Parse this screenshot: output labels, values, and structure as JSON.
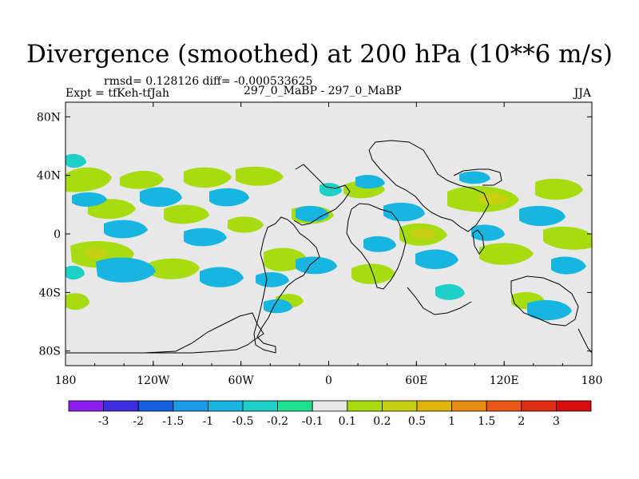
{
  "title": "Divergence (smoothed) at 200 hPa (10**6 m/s)",
  "stats": "rmsd= 0.128126 diff= -0.000533625",
  "expt": "Expt = tfKeh-tfJah",
  "center_label": "297_0_MaBP - 297_0_MaBP",
  "season": "JJA",
  "colors": {
    "background_field": "#e8e8e8",
    "coastline": "#000000"
  },
  "map": {
    "projection": "cylindrical equidistant",
    "lon_range": [
      -180,
      180
    ],
    "lat_range": [
      -90,
      90
    ],
    "x_ticks": [
      "180",
      "120W",
      "60W",
      "0",
      "60E",
      "120E",
      "180"
    ],
    "y_ticks": [
      "80N",
      "40N",
      "0",
      "40S",
      "80S"
    ]
  },
  "colorbar": {
    "labels": [
      "-3",
      "-2",
      "-1.5",
      "-1",
      "-0.5",
      "-0.2",
      "-0.1",
      "0.1",
      "0.2",
      "0.5",
      "1",
      "1.5",
      "2",
      "3"
    ],
    "colors": [
      "#8c1df0",
      "#3d2de0",
      "#1360e0",
      "#1a9ae8",
      "#16b6e0",
      "#1ed0c8",
      "#1fe08e",
      "#e8e8e8",
      "#a6dc10",
      "#c8d014",
      "#e0b40c",
      "#e88a10",
      "#e85814",
      "#e02c10",
      "#d80c0c"
    ]
  }
}
